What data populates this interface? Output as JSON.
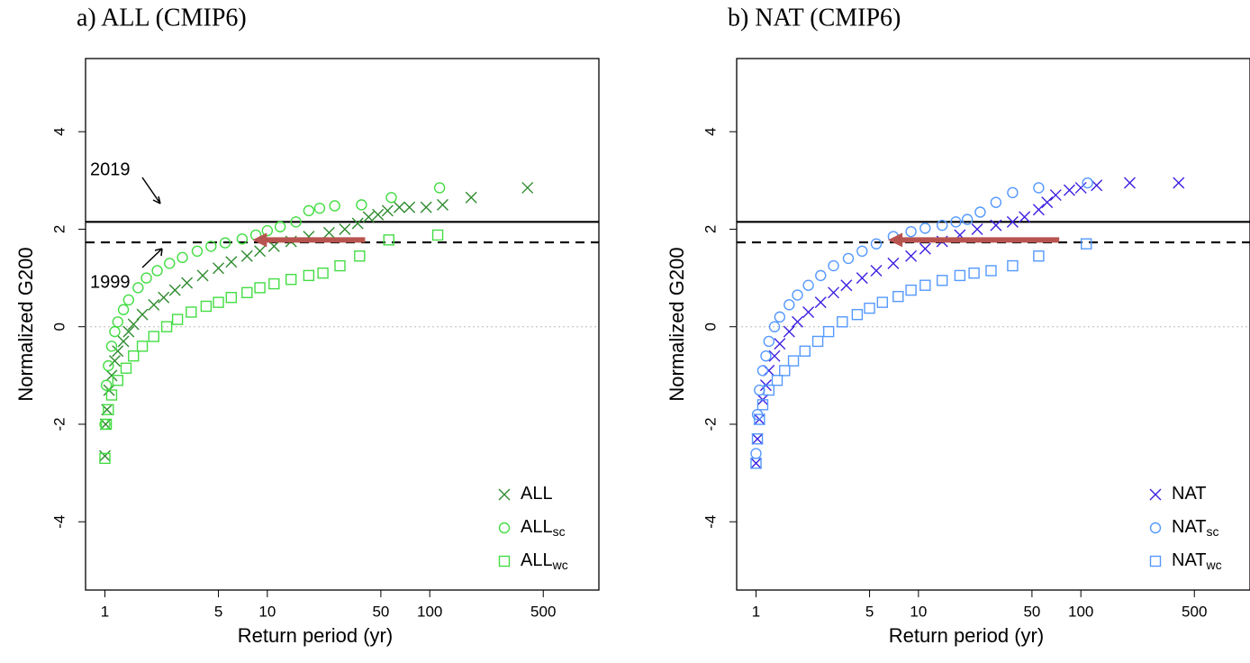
{
  "chart_data": [
    {
      "type": "scatter",
      "title": "a) ALL (CMIP6)",
      "xlabel": "Return period (yr)",
      "ylabel": "Normalized G200",
      "log_x": true,
      "xlim": [
        0.76,
        1100
      ],
      "ylim": [
        -5.4,
        5.5
      ],
      "xticks": [
        1,
        5,
        10,
        50,
        100,
        500
      ],
      "yticks": [
        -4,
        -2,
        0,
        2,
        4
      ],
      "hlines": [
        {
          "value": 2.15,
          "style": "solid"
        },
        {
          "value": 1.73,
          "style": "dashed"
        }
      ],
      "zero_line": true,
      "annotations": [
        "2019",
        "1999"
      ],
      "arrow": {
        "from": 40,
        "to": 8.1,
        "y": 1.78,
        "color": "#b85450"
      },
      "legend": "lower right",
      "series": [
        {
          "name": "ALL",
          "marker": "x",
          "color": "#2e8b2e",
          "x": [
            1,
            1.01,
            1.03,
            1.06,
            1.1,
            1.15,
            1.2,
            1.3,
            1.4,
            1.5,
            1.7,
            2,
            2.3,
            2.7,
            3.2,
            4,
            5,
            6,
            7.5,
            9,
            11,
            14,
            18,
            24,
            30,
            36,
            42,
            48,
            55,
            65,
            75,
            95,
            120,
            180,
            400
          ],
          "values": [
            -2.65,
            -2.0,
            -1.7,
            -1.3,
            -1.0,
            -0.7,
            -0.5,
            -0.3,
            -0.1,
            0.05,
            0.25,
            0.45,
            0.6,
            0.75,
            0.9,
            1.05,
            1.2,
            1.33,
            1.45,
            1.55,
            1.65,
            1.75,
            1.85,
            1.93,
            2.0,
            2.12,
            2.25,
            2.3,
            2.38,
            2.45,
            2.45,
            2.45,
            2.5,
            2.65,
            2.85
          ]
        },
        {
          "name": "ALL",
          "name_sub": "sc",
          "marker": "circle",
          "color": "#44dd44",
          "x": [
            1,
            1.02,
            1.05,
            1.1,
            1.15,
            1.2,
            1.3,
            1.4,
            1.6,
            1.8,
            2.1,
            2.5,
            3,
            3.7,
            4.5,
            5.5,
            7,
            8.5,
            10,
            12,
            15,
            18,
            21,
            26,
            38,
            58,
            115
          ],
          "values": [
            -2.0,
            -1.2,
            -0.8,
            -0.4,
            -0.1,
            0.1,
            0.35,
            0.55,
            0.8,
            1.0,
            1.15,
            1.3,
            1.42,
            1.55,
            1.65,
            1.72,
            1.8,
            1.88,
            1.97,
            2.05,
            2.15,
            2.38,
            2.43,
            2.48,
            2.5,
            2.65,
            2.85
          ]
        },
        {
          "name": "ALL",
          "name_sub": "wc",
          "marker": "square",
          "color": "#44dd44",
          "x": [
            1,
            1.02,
            1.05,
            1.1,
            1.2,
            1.35,
            1.5,
            1.7,
            2,
            2.4,
            2.8,
            3.4,
            4.2,
            5,
            6,
            7.5,
            9,
            11,
            14,
            18,
            22,
            28,
            37,
            56,
            112
          ],
          "values": [
            -2.7,
            -2.0,
            -1.7,
            -1.4,
            -1.1,
            -0.85,
            -0.6,
            -0.4,
            -0.2,
            0,
            0.15,
            0.3,
            0.42,
            0.5,
            0.6,
            0.7,
            0.8,
            0.88,
            0.97,
            1.05,
            1.1,
            1.25,
            1.45,
            1.78,
            1.88
          ]
        }
      ]
    },
    {
      "type": "scatter",
      "title": "b) NAT (CMIP6)",
      "xlabel": "Return period (yr)",
      "ylabel": "Normalized G200",
      "log_x": true,
      "xlim": [
        0.76,
        1100
      ],
      "ylim": [
        -5.4,
        5.5
      ],
      "xticks": [
        1,
        5,
        10,
        50,
        100,
        500
      ],
      "yticks": [
        -4,
        -2,
        0,
        2,
        4
      ],
      "hlines": [
        {
          "value": 2.15,
          "style": "solid"
        },
        {
          "value": 1.73,
          "style": "dashed"
        }
      ],
      "zero_line": true,
      "arrow": {
        "from": 73.6,
        "to": 6.5,
        "y": 1.78,
        "color": "#b85450"
      },
      "legend": "lower right",
      "series": [
        {
          "name": "NAT",
          "marker": "x",
          "color": "#3b1fe0",
          "x": [
            1,
            1.02,
            1.05,
            1.1,
            1.15,
            1.2,
            1.3,
            1.4,
            1.6,
            1.8,
            2.1,
            2.5,
            3,
            3.6,
            4.5,
            5.5,
            7,
            9,
            11,
            14,
            18,
            23,
            30,
            38,
            45,
            55,
            62,
            70,
            85,
            100,
            125,
            200,
            400
          ],
          "values": [
            -2.8,
            -2.3,
            -1.9,
            -1.5,
            -1.2,
            -0.9,
            -0.6,
            -0.35,
            -0.1,
            0.1,
            0.3,
            0.5,
            0.7,
            0.85,
            1.0,
            1.15,
            1.3,
            1.45,
            1.6,
            1.75,
            1.88,
            2.0,
            2.08,
            2.15,
            2.25,
            2.4,
            2.55,
            2.7,
            2.8,
            2.85,
            2.9,
            2.95,
            2.95
          ]
        },
        {
          "name": "NAT",
          "name_sub": "sc",
          "marker": "circle",
          "color": "#5599ff",
          "x": [
            1,
            1.02,
            1.05,
            1.1,
            1.15,
            1.2,
            1.3,
            1.4,
            1.6,
            1.8,
            2.1,
            2.5,
            3,
            3.7,
            4.5,
            5.5,
            7,
            9,
            11,
            14,
            17,
            20,
            24,
            30,
            38,
            55,
            110
          ],
          "values": [
            -2.6,
            -1.8,
            -1.3,
            -0.9,
            -0.6,
            -0.3,
            0,
            0.2,
            0.45,
            0.65,
            0.85,
            1.05,
            1.25,
            1.4,
            1.55,
            1.7,
            1.85,
            1.95,
            2.02,
            2.08,
            2.15,
            2.2,
            2.35,
            2.55,
            2.75,
            2.85,
            2.95
          ]
        },
        {
          "name": "NAT",
          "name_sub": "wc",
          "marker": "square",
          "color": "#5599ff",
          "x": [
            1,
            1.02,
            1.05,
            1.1,
            1.2,
            1.35,
            1.5,
            1.7,
            2,
            2.4,
            2.8,
            3.4,
            4.2,
            5,
            6,
            7.5,
            9,
            11,
            14,
            18,
            22,
            28,
            38,
            55,
            108
          ],
          "values": [
            -2.8,
            -2.3,
            -1.9,
            -1.6,
            -1.3,
            -1.1,
            -0.9,
            -0.7,
            -0.5,
            -0.3,
            -0.1,
            0.1,
            0.25,
            0.38,
            0.5,
            0.62,
            0.75,
            0.85,
            0.95,
            1.05,
            1.1,
            1.15,
            1.25,
            1.45,
            1.7
          ]
        }
      ]
    }
  ]
}
